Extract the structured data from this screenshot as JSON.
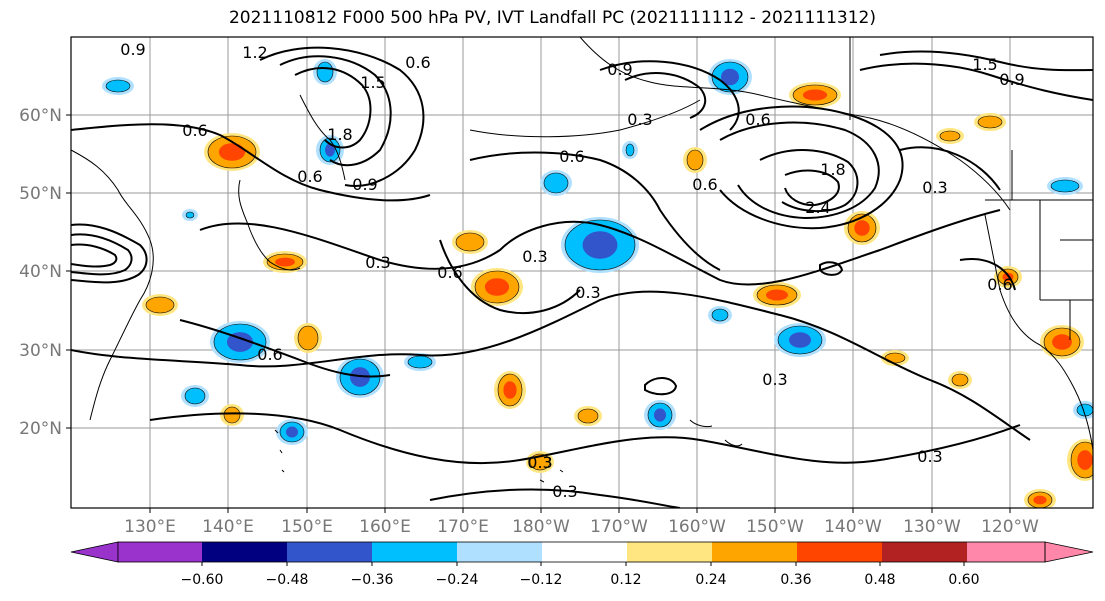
{
  "title": "2021110812 F000 500 hPa PV, IVT Landfall PC (2021111112 - 2021111312)",
  "latitude_labels": [
    "60°N",
    "50°N",
    "40°N",
    "30°N",
    "20°N"
  ],
  "longitude_labels": [
    "130°E",
    "140°E",
    "150°E",
    "160°E",
    "170°E",
    "180°W",
    "170°W",
    "160°W",
    "150°W",
    "140°W",
    "130°W",
    "120°W"
  ],
  "colorbar": {
    "tick_labels": [
      "−0.60",
      "−0.48",
      "−0.36",
      "−0.24",
      "−0.12",
      "0.12",
      "0.24",
      "0.36",
      "0.48",
      "0.60"
    ],
    "colors": [
      "#9933cc",
      "#000080",
      "#3355cc",
      "#00bfff",
      "#b0e0ff",
      "#ffffff",
      "#ffe680",
      "#ffa500",
      "#ff4500",
      "#b22222",
      "#ff88aa"
    ]
  },
  "contour_labels": [
    "0.9",
    "1.2",
    "0.6",
    "1.5",
    "0.9",
    "0.6",
    "0.6",
    "1.8",
    "0.6",
    "0.9",
    "0.6",
    "0.3",
    "0.6",
    "1.8",
    "2.4",
    "0.3",
    "0.3",
    "0.3",
    "0.6",
    "0.3",
    "0.6",
    "0.3",
    "0.3",
    "0.3",
    "0.3",
    "1.5",
    "0.9",
    "0.6"
  ],
  "fill_colors": {
    "light_blue": "#b0e0ff",
    "cyan": "#00bfff",
    "blue": "#3355cc",
    "yellow": "#ffe680",
    "orange": "#ffa500",
    "red_orange": "#ff4500"
  }
}
